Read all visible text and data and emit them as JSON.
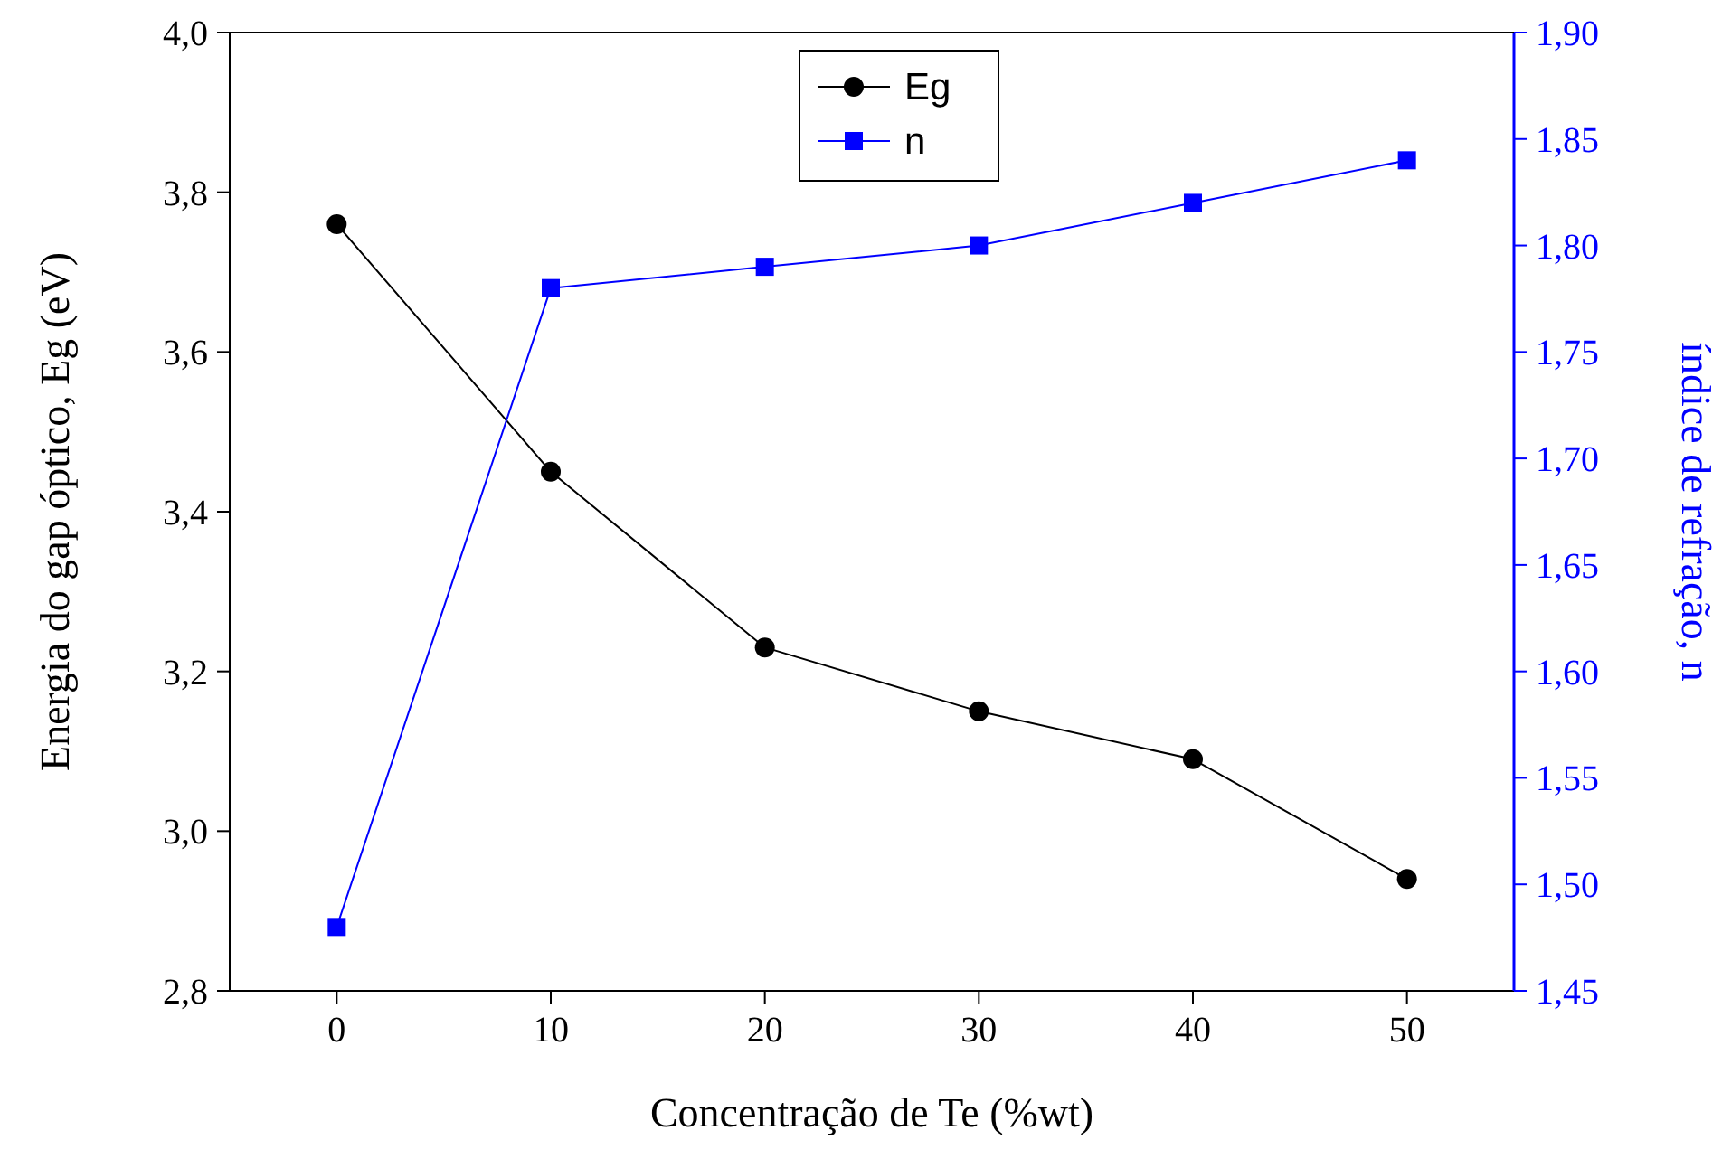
{
  "chart_data": {
    "type": "line",
    "xlabel": "Concentração de Te (%wt)",
    "ylabel": "Energia do gap óptico, Eg (eV)",
    "y2label": "índice de refração, n",
    "x": [
      0,
      10,
      20,
      30,
      40,
      50
    ],
    "series": [
      {
        "name": "Eg",
        "color": "#000000",
        "marker": "circle",
        "values": [
          3.76,
          3.45,
          3.23,
          3.15,
          3.09,
          2.94
        ]
      },
      {
        "name": "n",
        "color": "#0000ff",
        "marker": "square",
        "axis": "y2",
        "values": [
          1.48,
          1.78,
          1.79,
          1.8,
          1.82,
          1.84
        ]
      }
    ],
    "xlim": [
      -5,
      55
    ],
    "xticks": [
      0,
      10,
      20,
      30,
      40,
      50
    ],
    "ylim": [
      2.8,
      4.0
    ],
    "yticks": [
      {
        "value": 2.8,
        "label": "2,8"
      },
      {
        "value": 3.0,
        "label": "3,0"
      },
      {
        "value": 3.2,
        "label": "3,2"
      },
      {
        "value": 3.4,
        "label": "3,4"
      },
      {
        "value": 3.6,
        "label": "3,6"
      },
      {
        "value": 3.8,
        "label": "3,8"
      },
      {
        "value": 4.0,
        "label": "4,0"
      }
    ],
    "y2lim": [
      1.45,
      1.9
    ],
    "y2ticks": [
      {
        "value": 1.45,
        "label": "1,45"
      },
      {
        "value": 1.5,
        "label": "1,50"
      },
      {
        "value": 1.55,
        "label": "1,55"
      },
      {
        "value": 1.6,
        "label": "1,60"
      },
      {
        "value": 1.65,
        "label": "1,65"
      },
      {
        "value": 1.7,
        "label": "1,70"
      },
      {
        "value": 1.75,
        "label": "1,75"
      },
      {
        "value": 1.8,
        "label": "1,80"
      },
      {
        "value": 1.85,
        "label": "1,85"
      },
      {
        "value": 1.9,
        "label": "1,90"
      }
    ],
    "legend": "top",
    "line_style": "solid",
    "grid": false
  }
}
